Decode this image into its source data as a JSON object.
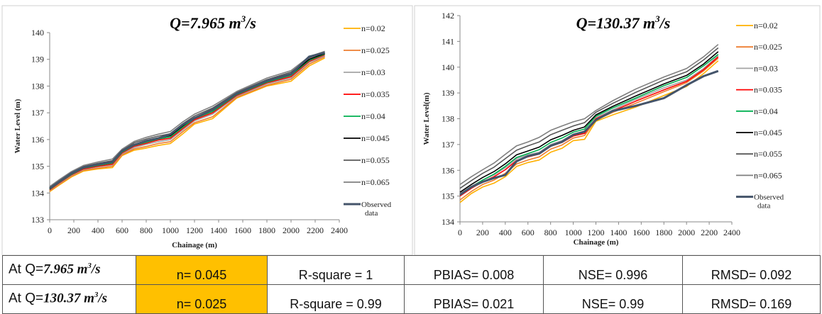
{
  "colors": {
    "n=0.02": "#ffb000",
    "n=0.025": "#ed7d31",
    "n=0.03": "#a5a5a5",
    "n=0.035": "#ff0000",
    "n=0.04": "#00b050",
    "n=0.045": "#000000",
    "n=0.055": "#595959",
    "n=0.065": "#7f7f7f",
    "observed": "#44546a",
    "highlight": "#ffc000"
  },
  "chart_data": [
    {
      "type": "line",
      "title_prefix": "Q=7.965 m",
      "title_sup": "3",
      "title_suffix": "/s",
      "xlabel": "Chainage (m)",
      "ylabel": "Water Level (m)",
      "xlim": [
        0,
        2400
      ],
      "ylim": [
        133,
        140
      ],
      "xticks": [
        "0",
        "200",
        "400",
        "600",
        "800",
        "1000",
        "1200",
        "1400",
        "1600",
        "1800",
        "2000",
        "2200",
        "2400"
      ],
      "yticks": [
        "133",
        "134",
        "135",
        "136",
        "137",
        "138",
        "139",
        "140"
      ],
      "grid": false,
      "legend_position": "right",
      "x": [
        0,
        80,
        180,
        280,
        400,
        520,
        600,
        700,
        800,
        900,
        1000,
        1100,
        1200,
        1350,
        1550,
        1800,
        2000,
        2150,
        2280
      ],
      "series": [
        {
          "name": "n=0.02",
          "values": [
            134.05,
            134.3,
            134.6,
            134.82,
            134.9,
            134.95,
            135.4,
            135.6,
            135.68,
            135.78,
            135.85,
            136.2,
            136.58,
            136.78,
            137.55,
            138.0,
            138.18,
            138.75,
            139.05
          ]
        },
        {
          "name": "n=0.025",
          "values": [
            134.08,
            134.33,
            134.63,
            134.85,
            134.93,
            135.0,
            135.43,
            135.65,
            135.74,
            135.85,
            135.92,
            136.28,
            136.63,
            136.85,
            137.58,
            138.03,
            138.25,
            138.82,
            139.1
          ]
        },
        {
          "name": "n=0.03",
          "values": [
            134.1,
            134.36,
            134.66,
            134.88,
            134.98,
            135.05,
            135.47,
            135.7,
            135.82,
            135.92,
            136.0,
            136.35,
            136.7,
            136.95,
            137.62,
            138.08,
            138.3,
            138.88,
            139.13
          ]
        },
        {
          "name": "n=0.035",
          "values": [
            134.12,
            134.38,
            134.68,
            134.9,
            135.0,
            135.08,
            135.5,
            135.75,
            135.86,
            135.98,
            136.05,
            136.4,
            136.74,
            137.0,
            137.65,
            138.12,
            138.35,
            138.92,
            139.17
          ]
        },
        {
          "name": "n=0.04",
          "values": [
            134.14,
            134.4,
            134.7,
            134.93,
            135.03,
            135.12,
            135.53,
            135.78,
            135.9,
            136.02,
            136.1,
            136.45,
            136.78,
            137.05,
            137.68,
            138.15,
            138.4,
            138.96,
            139.2
          ]
        },
        {
          "name": "n=0.045",
          "values": [
            134.16,
            134.42,
            134.72,
            134.95,
            135.06,
            135.15,
            135.56,
            135.82,
            135.94,
            136.06,
            136.15,
            136.5,
            136.82,
            137.1,
            137.7,
            138.18,
            138.44,
            139.0,
            139.22
          ]
        },
        {
          "name": "n=0.055",
          "values": [
            134.2,
            134.46,
            134.76,
            134.99,
            135.11,
            135.21,
            135.6,
            135.88,
            136.02,
            136.13,
            136.22,
            136.58,
            136.88,
            137.18,
            137.76,
            138.24,
            138.52,
            139.05,
            139.26
          ]
        },
        {
          "name": "n=0.065",
          "values": [
            134.24,
            134.5,
            134.8,
            135.03,
            135.16,
            135.27,
            135.64,
            135.93,
            136.08,
            136.2,
            136.3,
            136.65,
            136.95,
            137.25,
            137.8,
            138.3,
            138.58,
            139.1,
            139.3
          ]
        },
        {
          "name": "Observed data",
          "values": [
            134.18,
            134.43,
            134.74,
            134.96,
            135.07,
            135.17,
            135.58,
            135.8,
            135.95,
            136.05,
            136.2,
            136.55,
            136.8,
            137.12,
            137.72,
            138.2,
            138.45,
            139.1,
            139.25
          ]
        }
      ]
    },
    {
      "type": "line",
      "title_prefix": "Q=130.37 m",
      "title_sup": "3",
      "title_suffix": "/s",
      "xlabel": "Chainage (m)",
      "ylabel": "Water Level(m)",
      "xlim": [
        0,
        2400
      ],
      "ylim": [
        134,
        142
      ],
      "xticks": [
        "0",
        "200",
        "400",
        "600",
        "800",
        "1000",
        "1200",
        "1400",
        "1600",
        "1800",
        "2000",
        "2200",
        "2400"
      ],
      "yticks": [
        "134",
        "135",
        "136",
        "137",
        "138",
        "139",
        "140",
        "141",
        "142"
      ],
      "grid": false,
      "legend_position": "right",
      "x": [
        0,
        100,
        200,
        300,
        400,
        500,
        600,
        700,
        800,
        900,
        1000,
        1100,
        1200,
        1350,
        1550,
        1800,
        2000,
        2150,
        2280
      ],
      "series": [
        {
          "name": "n=0.02",
          "values": [
            134.75,
            135.1,
            135.35,
            135.5,
            135.75,
            136.15,
            136.3,
            136.4,
            136.7,
            136.85,
            137.15,
            137.2,
            137.9,
            138.15,
            138.45,
            138.9,
            139.25,
            139.75,
            140.25
          ]
        },
        {
          "name": "n=0.025",
          "values": [
            134.85,
            135.18,
            135.45,
            135.62,
            135.88,
            136.25,
            136.4,
            136.52,
            136.82,
            136.98,
            137.25,
            137.35,
            137.95,
            138.25,
            138.6,
            139.05,
            139.4,
            139.85,
            140.35
          ]
        },
        {
          "name": "n=0.03",
          "values": [
            135.1,
            135.38,
            135.62,
            135.82,
            136.1,
            136.45,
            136.6,
            136.7,
            137.0,
            137.15,
            137.4,
            137.5,
            138.05,
            138.35,
            138.75,
            139.2,
            139.5,
            139.95,
            140.45
          ]
        },
        {
          "name": "n=0.035",
          "values": [
            135.0,
            135.3,
            135.55,
            135.75,
            136.02,
            136.38,
            136.52,
            136.63,
            136.93,
            137.08,
            137.33,
            137.43,
            138.0,
            138.3,
            138.68,
            139.12,
            139.45,
            139.9,
            140.4
          ]
        },
        {
          "name": "n=0.04",
          "values": [
            135.05,
            135.35,
            135.62,
            135.85,
            136.15,
            136.5,
            136.65,
            136.8,
            137.08,
            137.25,
            137.48,
            137.6,
            138.1,
            138.42,
            138.8,
            139.28,
            139.6,
            140.05,
            140.5
          ]
        },
        {
          "name": "n=0.045",
          "values": [
            135.15,
            135.45,
            135.72,
            135.95,
            136.25,
            136.6,
            136.75,
            136.9,
            137.18,
            137.35,
            137.55,
            137.68,
            138.15,
            138.48,
            138.88,
            139.35,
            139.68,
            140.12,
            140.6
          ]
        },
        {
          "name": "n=0.055",
          "values": [
            135.3,
            135.6,
            135.88,
            136.12,
            136.45,
            136.78,
            136.95,
            137.1,
            137.38,
            137.55,
            137.72,
            137.85,
            138.25,
            138.6,
            139.02,
            139.5,
            139.82,
            140.28,
            140.75
          ]
        },
        {
          "name": "n=0.065",
          "values": [
            135.45,
            135.75,
            136.02,
            136.28,
            136.62,
            136.95,
            137.1,
            137.28,
            137.55,
            137.72,
            137.88,
            138.0,
            138.32,
            138.7,
            139.15,
            139.62,
            139.95,
            140.4,
            140.88
          ]
        },
        {
          "name": "Observed data",
          "values": [
            135.05,
            135.35,
            135.55,
            135.7,
            135.82,
            136.35,
            136.55,
            136.65,
            136.95,
            137.1,
            137.38,
            137.5,
            137.95,
            138.3,
            138.5,
            138.8,
            139.3,
            139.65,
            139.85
          ]
        }
      ]
    }
  ],
  "table": {
    "rows": [
      {
        "prefix": "At Q=",
        "q": "7.965 m",
        "sup": "3",
        "suffix": "/s",
        "n": "n= 0.045",
        "r2": "R-square = 1",
        "pbias": "PBIAS= 0.008",
        "nse": "NSE= 0.996",
        "rmsd": "RMSD= 0.092"
      },
      {
        "prefix": "At Q=",
        "q": "130.37 m",
        "sup": "3",
        "suffix": "/s",
        "n": "n= 0.025",
        "r2": "R-square = 0.99",
        "pbias": "PBIAS= 0.021",
        "nse": "NSE= 0.99",
        "rmsd": "RMSD= 0.169"
      }
    ]
  }
}
